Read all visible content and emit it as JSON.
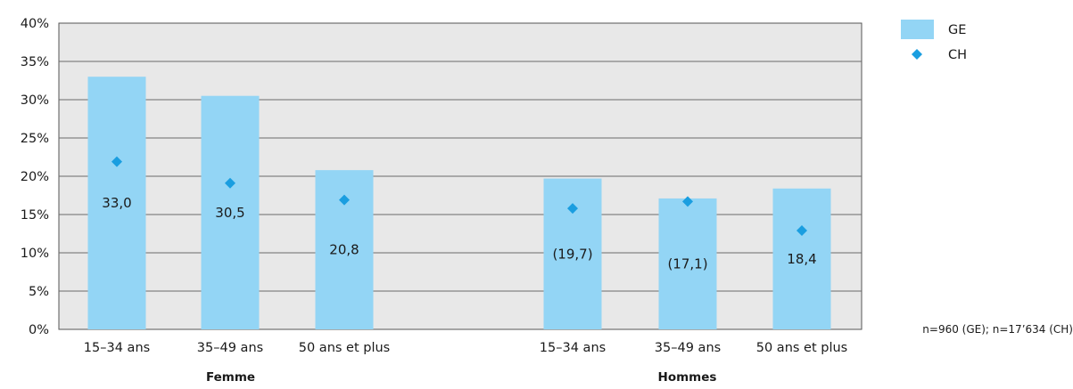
{
  "chart_data": {
    "type": "bar",
    "groups": [
      {
        "label": "Femme",
        "categories": [
          "15–34 ans",
          "35–49 ans",
          "50 ans et plus"
        ]
      },
      {
        "label": "Hommes",
        "categories": [
          "15–34 ans",
          "35–49 ans",
          "50 ans et plus"
        ]
      }
    ],
    "series": [
      {
        "name": "GE",
        "mark": "bar",
        "color": "#93d5f5",
        "values": [
          33.0,
          30.5,
          20.8,
          19.7,
          17.1,
          18.4
        ],
        "labels": [
          "33,0",
          "30,5",
          "20,8",
          "(19,7)",
          "(17,1)",
          "18,4"
        ]
      },
      {
        "name": "CH",
        "mark": "diamond",
        "color": "#1a9ee0",
        "values": [
          21.9,
          19.1,
          16.9,
          15.8,
          16.7,
          12.9
        ]
      }
    ],
    "y_ticks": [
      "0%",
      "5%",
      "10%",
      "15%",
      "20%",
      "25%",
      "30%",
      "35%",
      "40%"
    ],
    "ylim": [
      0,
      40
    ],
    "grid": true,
    "plot_background": "#e8e8e8",
    "legend_position": "right",
    "note": "n=960 (GE); n=17’634 (CH)"
  }
}
